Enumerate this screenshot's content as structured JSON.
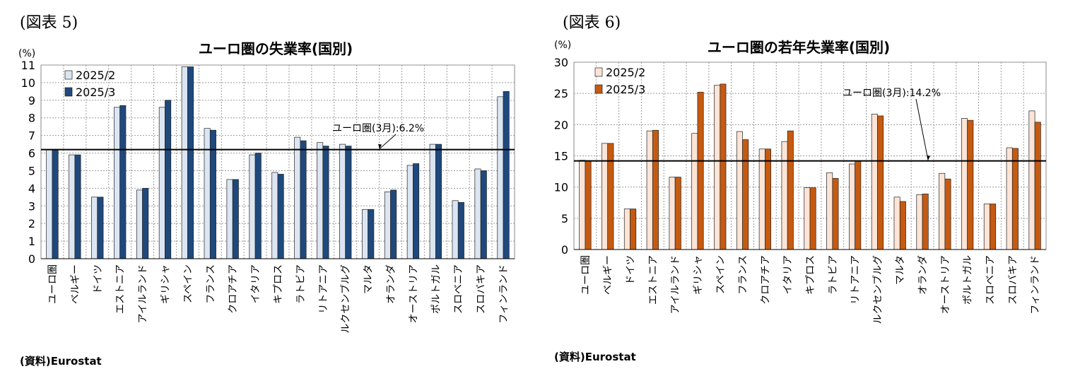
{
  "charts": [
    {
      "fig_label": "(図表 5)",
      "source": "(資料)Eurostat",
      "chart_data": {
        "type": "bar",
        "title": "ユーロ圏の失業率(国別)",
        "ylabel": "(%)",
        "ylim": [
          0,
          11
        ],
        "yticks": [
          0,
          1,
          2,
          3,
          4,
          5,
          6,
          7,
          8,
          9,
          10,
          11
        ],
        "categories": [
          "ユーロ圏",
          "ベルギー",
          "ドイツ",
          "エストニア",
          "アイルランド",
          "ギリシャ",
          "スペイン",
          "フランス",
          "クロアチア",
          "イタリア",
          "キプロス",
          "ラトビア",
          "リトアニア",
          "ルクセンブルグ",
          "マルタ",
          "オランダ",
          "オーストリア",
          "ポルトガル",
          "スロベニア",
          "スロバキア",
          "フィンランド"
        ],
        "series": [
          {
            "name": "2025/2",
            "color": "#dce6f2",
            "values": [
              6.2,
              5.9,
              3.5,
              8.6,
              3.9,
              8.6,
              10.9,
              7.4,
              4.5,
              5.9,
              4.9,
              6.9,
              6.6,
              6.5,
              2.8,
              3.8,
              5.3,
              6.5,
              3.3,
              5.1,
              9.2
            ]
          },
          {
            "name": "2025/3",
            "color": "#1f497d",
            "values": [
              6.2,
              5.9,
              3.5,
              8.7,
              4.0,
              9.0,
              10.9,
              7.3,
              4.5,
              6.0,
              4.8,
              6.7,
              6.4,
              6.4,
              2.8,
              3.9,
              5.4,
              6.5,
              3.2,
              5.0,
              9.5
            ]
          }
        ],
        "reference_line": {
          "value": 6.2,
          "label": "ユーロ圏(3月):6.2%"
        },
        "grid": true,
        "legend": "top-left"
      }
    },
    {
      "fig_label": "(図表 6)",
      "source": "(資料)Eurostat",
      "chart_data": {
        "type": "bar",
        "title": "ユーロ圏の若年失業率(国別)",
        "ylabel": "(%)",
        "ylim": [
          0,
          30
        ],
        "yticks": [
          0,
          5,
          10,
          15,
          20,
          25,
          30
        ],
        "categories": [
          "ユーロ圏",
          "ベルギー",
          "ドイツ",
          "エストニア",
          "アイルランド",
          "ギリシャ",
          "スペイン",
          "フランス",
          "クロアチア",
          "イタリア",
          "キプロス",
          "ラトビア",
          "リトアニア",
          "ルクセンブルグ",
          "マルタ",
          "オランダ",
          "オーストリア",
          "ポルトガル",
          "スロベニア",
          "スロバキア",
          "フィンランド"
        ],
        "series": [
          {
            "name": "2025/2",
            "color": "#fce4d6",
            "values": [
              14.3,
              17.0,
              6.5,
              19.0,
              11.6,
              18.6,
              26.3,
              18.9,
              16.1,
              17.3,
              9.9,
              12.3,
              13.7,
              21.7,
              8.4,
              8.8,
              12.2,
              21.0,
              7.3,
              16.3,
              22.2
            ]
          },
          {
            "name": "2025/3",
            "color": "#c55a11",
            "values": [
              14.2,
              17.0,
              6.5,
              19.1,
              11.6,
              25.2,
              26.5,
              17.6,
              16.1,
              19.0,
              9.9,
              11.4,
              14.2,
              21.4,
              7.7,
              8.9,
              11.3,
              20.7,
              7.3,
              16.2,
              20.4
            ]
          }
        ],
        "reference_line": {
          "value": 14.2,
          "label": "ユーロ圏(3月):14.2%"
        },
        "grid": true,
        "legend": "top-left"
      }
    }
  ]
}
